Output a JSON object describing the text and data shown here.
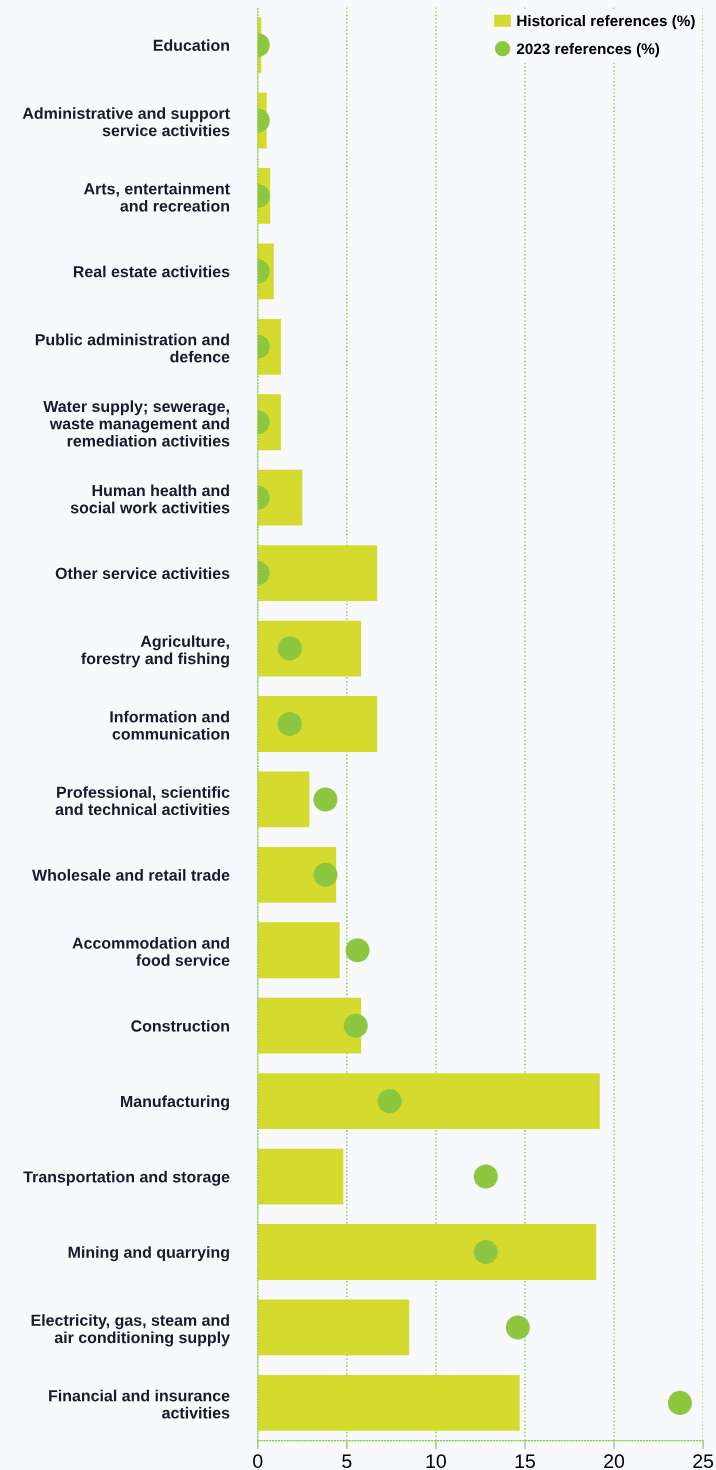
{
  "chart_data": {
    "type": "bar",
    "orientation": "horizontal",
    "categories": [
      "Education",
      "Administrative and support\nservice activities",
      "Arts, entertainment\nand recreation",
      "Real estate activities",
      "Public administration and\ndefence",
      "Water supply; sewerage,\nwaste management and\nremediation activities",
      "Human health and\nsocial work activities",
      "Other service activities",
      "Agriculture,\nforestry and fishing",
      "Information and\ncommunication",
      "Professional, scientific\nand technical activities",
      "Wholesale and retail trade",
      "Accommodation and\nfood service",
      "Construction",
      "Manufacturing",
      "Transportation and storage",
      "Mining and quarrying",
      "Electricity, gas, steam and\nair conditioning supply",
      "Financial and insurance\nactivities"
    ],
    "series": [
      {
        "name": "Historical references (%)",
        "color": "#d4db2e",
        "values": [
          0.2,
          0.5,
          0.7,
          0.9,
          1.3,
          1.3,
          2.5,
          6.7,
          5.8,
          6.7,
          2.9,
          4.4,
          4.6,
          5.8,
          19.2,
          4.8,
          19.0,
          8.5,
          14.7
        ]
      },
      {
        "name": "2023 references (%)",
        "type": "scatter",
        "color": "#8dc63f",
        "values": [
          0,
          0,
          0,
          0,
          0,
          0,
          0,
          0,
          1.8,
          1.8,
          3.8,
          3.8,
          5.6,
          5.5,
          7.4,
          12.8,
          12.8,
          14.6,
          23.7
        ]
      }
    ],
    "xlim": [
      0,
      25
    ],
    "xticks": [
      0,
      5,
      10,
      15,
      20,
      25
    ],
    "grid": "x",
    "legend": "top right",
    "marker": "circle"
  }
}
